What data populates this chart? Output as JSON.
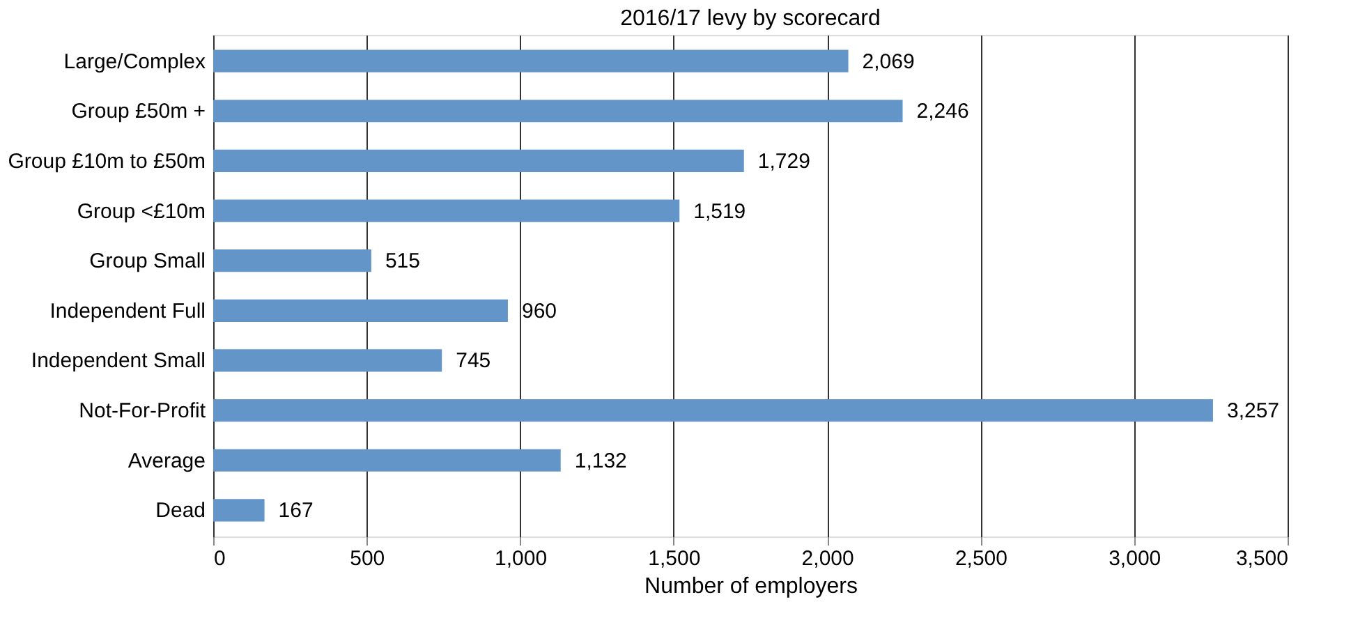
{
  "chart_data": {
    "type": "bar",
    "orientation": "horizontal",
    "title": "2016/17 levy by scorecard",
    "xlabel": "Number of employers",
    "categories": [
      "Large/Complex",
      "Group £50m +",
      "Group £10m to £50m",
      "Group <£10m",
      "Group Small",
      "Independent Full",
      "Independent Small",
      "Not-For-Profit",
      "Average",
      "Dead"
    ],
    "values": [
      2069,
      2246,
      1729,
      1519,
      515,
      960,
      745,
      3257,
      1132,
      167
    ],
    "color": "#6495c8",
    "xlim": [
      0,
      3500
    ],
    "xticks": [
      0,
      500,
      {
        "value": 1000,
        "label": "1,000"
      },
      {
        "value": 1500,
        "label": "1,500"
      },
      {
        "value": 2000,
        "label": "2,000"
      },
      {
        "value": 2500,
        "label": "2,500"
      },
      {
        "value": 3000,
        "label": "3,000"
      },
      {
        "value": 3500,
        "label": "3,500"
      }
    ],
    "value_labels": [
      "2,069",
      "2,246",
      "1,729",
      "1,519",
      "515",
      "960",
      "745",
      "3,257",
      "1,132",
      "167"
    ],
    "grid": "x"
  }
}
